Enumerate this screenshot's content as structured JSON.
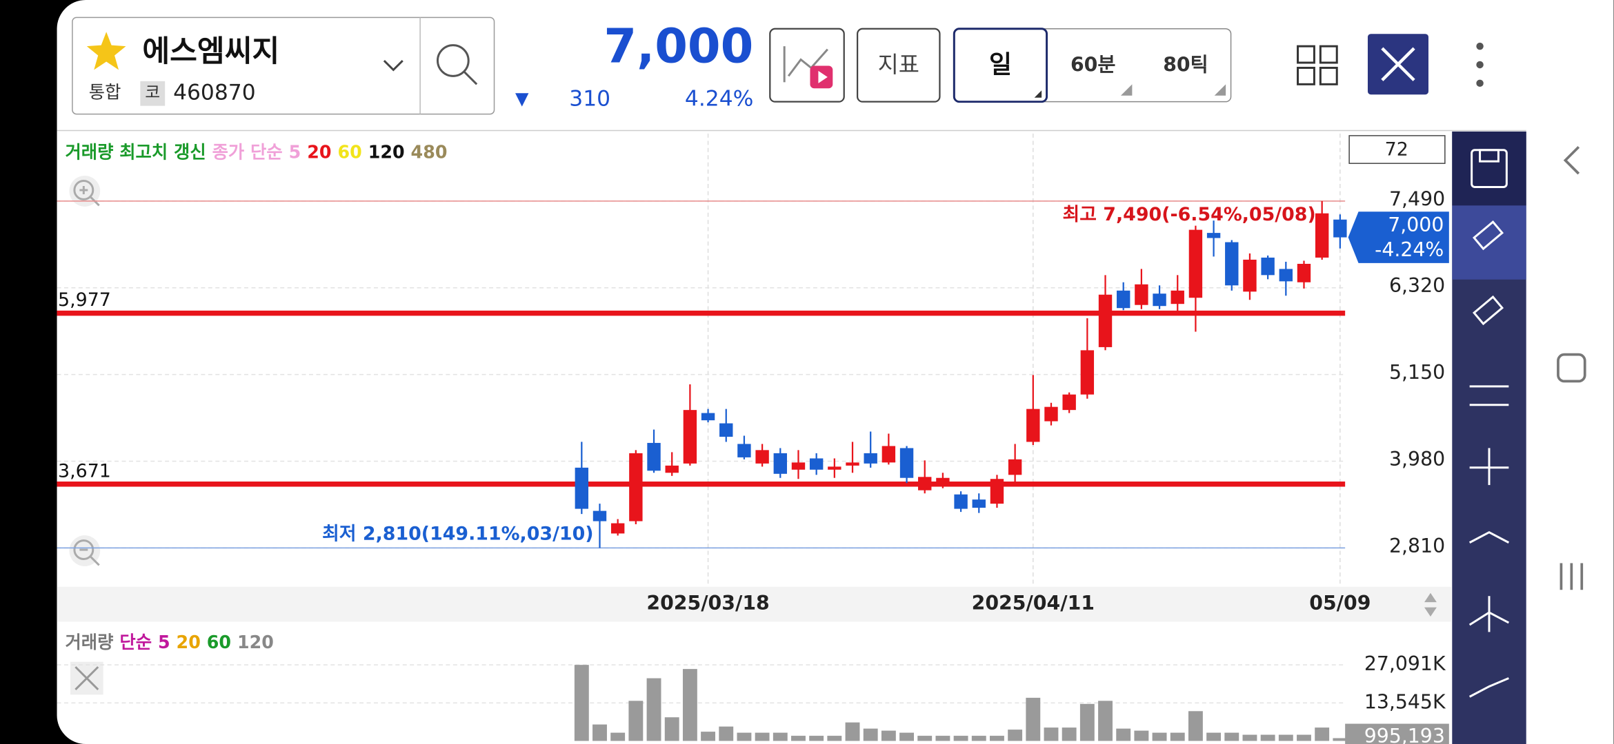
{
  "header": {
    "stock_name": "에스엠씨지",
    "market": "통합",
    "code_label": "코",
    "code": "460870",
    "price": "7,000",
    "change_arrow": "▼",
    "change": "310",
    "change_pct": "4.24%"
  },
  "toolbar": {
    "indicator": "지표",
    "period_day": "일",
    "period_60min": "60분",
    "period_80tick": "80틱"
  },
  "chart_data": [
    {
      "type": "candlestick",
      "legend": [
        {
          "text": "거래량 최고치 갱신",
          "color": "#1a9a2a"
        },
        {
          "text": "종가 단순",
          "color": "#f0a0d8"
        },
        {
          "text": "5",
          "color": "#f0a0d8"
        },
        {
          "text": "20",
          "color": "#e8141b"
        },
        {
          "text": "60",
          "color": "#f2e41a"
        },
        {
          "text": "120",
          "color": "#111111"
        },
        {
          "text": "480",
          "color": "#9a8a5a"
        }
      ],
      "visible_count": 72,
      "categories": [
        null,
        null,
        null,
        null,
        null,
        null,
        null,
        "2025/03/18",
        null,
        null,
        null,
        null,
        null,
        null,
        null,
        null,
        null,
        null,
        null,
        null,
        null,
        null,
        null,
        null,
        null,
        "2025/04/11",
        null,
        null,
        null,
        null,
        null,
        null,
        null,
        null,
        null,
        null,
        null,
        null,
        null,
        null,
        null,
        null,
        "05/09"
      ],
      "open": [
        3893,
        3310,
        3005,
        3171,
        4227,
        3824,
        3949,
        4630,
        4491,
        4213,
        3949,
        4088,
        3866,
        4018,
        3866,
        3921,
        4088,
        3963,
        4157,
        3588,
        3685,
        3532,
        3463,
        3407,
        3796,
        4241,
        4519,
        4671,
        4880,
        5519,
        6282,
        6088,
        6241,
        6102,
        6185,
        7060,
        6935,
        6268,
        6727,
        6574,
        6394,
        6727,
        7240
      ],
      "high": [
        4241,
        3407,
        3199,
        4130,
        4407,
        4102,
        5018,
        4685,
        4685,
        4324,
        4213,
        4157,
        4130,
        4088,
        4018,
        4241,
        4380,
        4352,
        4185,
        3991,
        3824,
        3574,
        3546,
        3796,
        4213,
        5143,
        4768,
        4908,
        5908,
        6491,
        6394,
        6574,
        6352,
        6491,
        7157,
        7227,
        6963,
        6783,
        6755,
        6671,
        6685,
        7490,
        7310
      ],
      "low": [
        3268,
        2810,
        2977,
        3130,
        3824,
        3782,
        3921,
        4505,
        4241,
        4005,
        3907,
        3755,
        3741,
        3796,
        3755,
        3824,
        3893,
        3935,
        3685,
        3546,
        3616,
        3296,
        3282,
        3352,
        3685,
        4199,
        4463,
        4630,
        4824,
        5477,
        6018,
        6032,
        6032,
        5977,
        5727,
        6741,
        6282,
        6157,
        6435,
        6213,
        6310,
        6699,
        6850
      ],
      "close": [
        3338,
        3171,
        3143,
        4088,
        3852,
        3921,
        4671,
        4532,
        4310,
        4032,
        4130,
        3810,
        3963,
        3866,
        3907,
        3963,
        3949,
        4185,
        3755,
        3768,
        3755,
        3338,
        3352,
        3741,
        4005,
        4685,
        4713,
        4880,
        5477,
        6227,
        6046,
        6366,
        6074,
        6282,
        7102,
        6991,
        6352,
        6699,
        6491,
        6407,
        6643,
        7324,
        7000
      ],
      "up_color": "#e8141b",
      "down_color": "#1a5fd1",
      "ylim": [
        2300,
        8400
      ],
      "yticks": [
        {
          "value": 2810,
          "label": "2,810"
        },
        {
          "value": 3980,
          "label": "3,980"
        },
        {
          "value": 5150,
          "label": "5,150"
        },
        {
          "value": 6320,
          "label": "6,320"
        },
        {
          "value": 7490,
          "label": "7,490"
        }
      ],
      "hlines": [
        {
          "value": 5977,
          "label": "5,977"
        },
        {
          "value": 3671,
          "label": "3,671"
        }
      ],
      "high_label": "최고 7,490(-6.54%,05/08)",
      "low_label": "최저 2,810(149.11%,03/10)",
      "current": {
        "value": 7000,
        "label": "7,000",
        "change": "-4.24%"
      }
    },
    {
      "type": "bar",
      "legend": [
        {
          "text": "거래량",
          "color": "#777777"
        },
        {
          "text": "단순",
          "color": "#c0189c"
        },
        {
          "text": "5",
          "color": "#c0189c"
        },
        {
          "text": "20",
          "color": "#e8a400"
        },
        {
          "text": "60",
          "color": "#1a9a2a"
        },
        {
          "text": "120",
          "color": "#888888"
        }
      ],
      "color": "#9a9a9a",
      "values": [
        27086,
        5860,
        2930,
        14280,
        22330,
        8420,
        25620,
        3290,
        5120,
        2930,
        2930,
        2930,
        1830,
        1830,
        1830,
        6590,
        4390,
        3660,
        2930,
        1830,
        1830,
        1830,
        1830,
        1830,
        4030,
        15370,
        4760,
        4760,
        13180,
        14280,
        4390,
        3660,
        2930,
        2930,
        10610,
        2930,
        2930,
        2200,
        2200,
        2200,
        2200,
        4760,
        995.193
      ],
      "current_label": "995,193",
      "ylim": [
        0,
        42100
      ],
      "yticks": [
        {
          "value": 13545,
          "label": "13,545K"
        },
        {
          "value": 27091,
          "label": "27,091K"
        }
      ]
    }
  ]
}
